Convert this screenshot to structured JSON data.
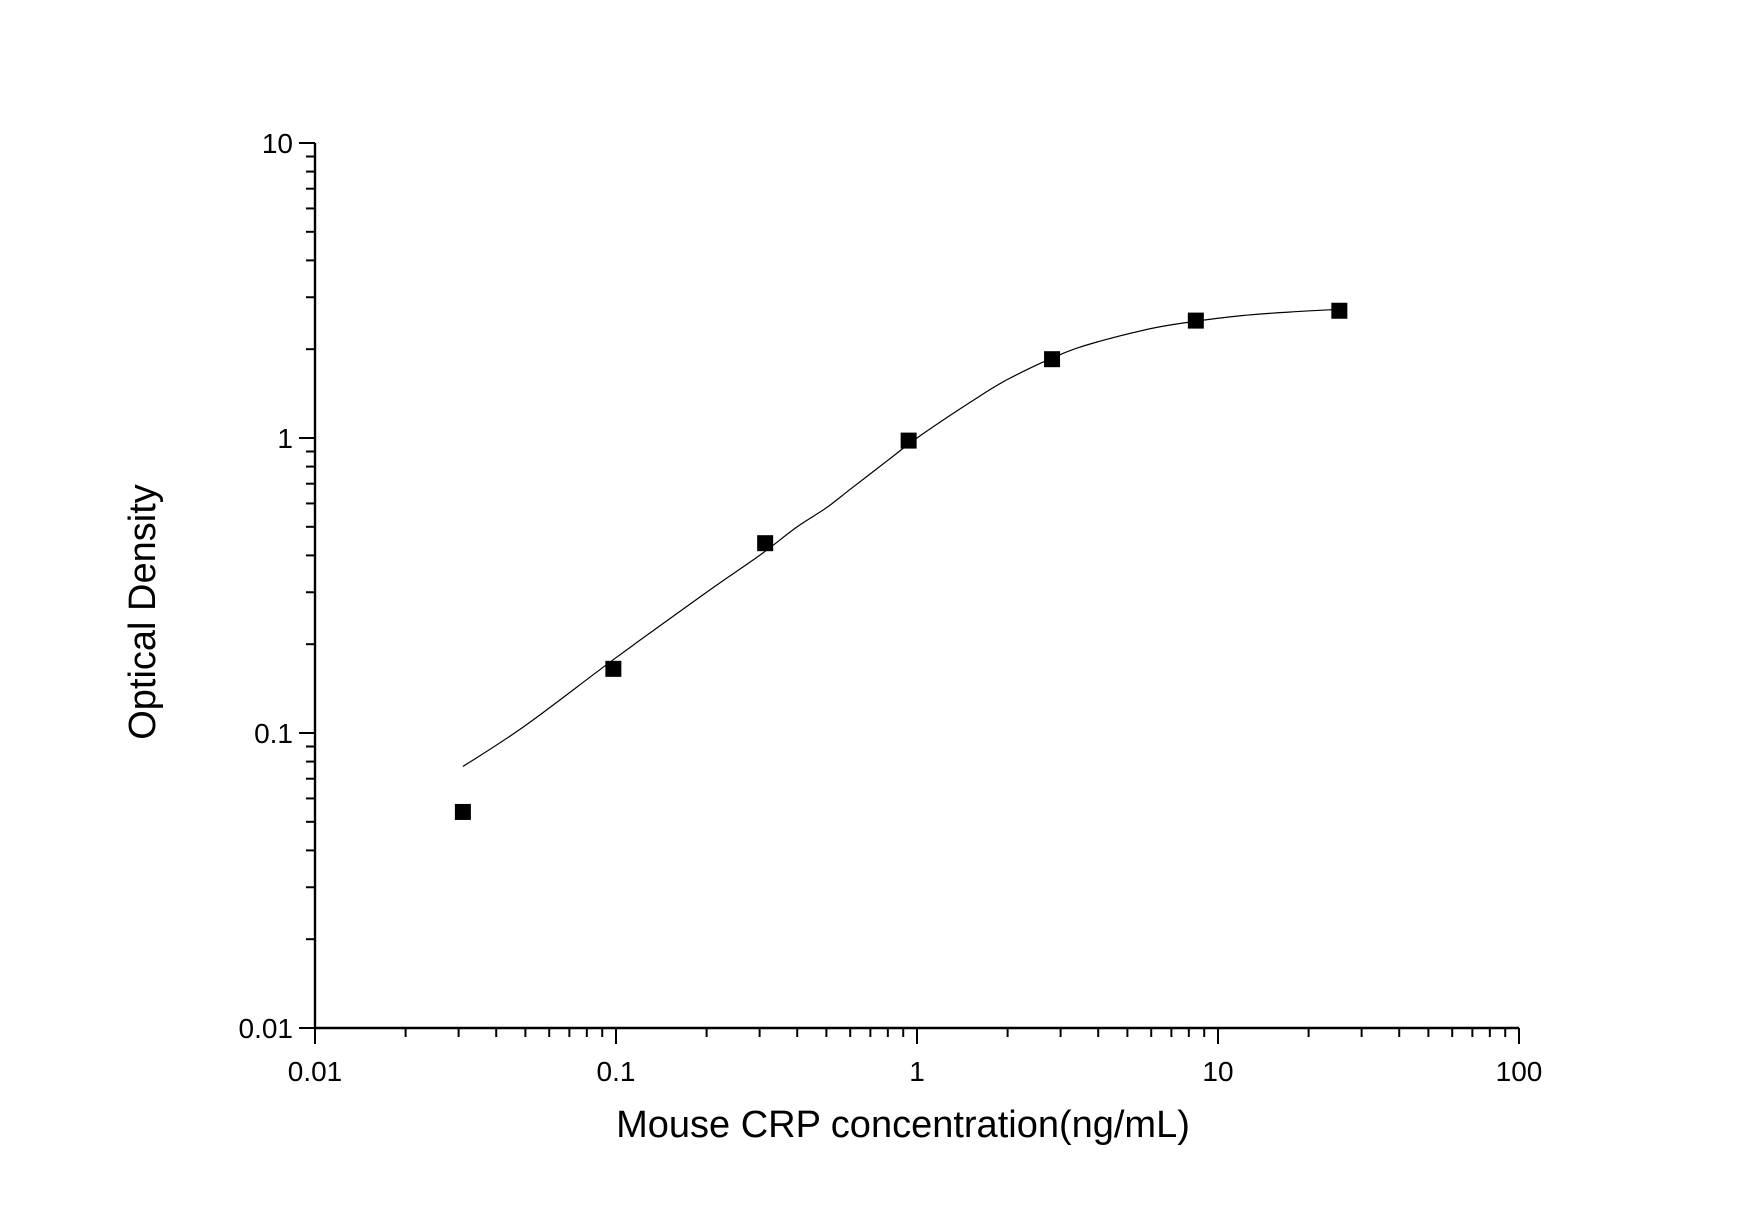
{
  "chart_data": {
    "type": "scatter",
    "xlabel": "Mouse CRP concentration(ng/mL)",
    "ylabel": "Optical Density",
    "xscale": "log",
    "yscale": "log",
    "xlim": [
      0.01,
      100
    ],
    "ylim": [
      0.01,
      10
    ],
    "x_ticks": [
      {
        "value": 0.01,
        "label": "0.01"
      },
      {
        "value": 0.1,
        "label": "0.1"
      },
      {
        "value": 1,
        "label": "1"
      },
      {
        "value": 10,
        "label": "10"
      },
      {
        "value": 100,
        "label": "100"
      }
    ],
    "y_ticks": [
      {
        "value": 0.01,
        "label": "0.01"
      },
      {
        "value": 0.1,
        "label": "0.1"
      },
      {
        "value": 1,
        "label": "1"
      },
      {
        "value": 10,
        "label": "10"
      }
    ],
    "grid": false,
    "series": [
      {
        "type": "scatter",
        "marker": "square",
        "x": [
          0.031,
          0.098,
          0.313,
          0.938,
          2.81,
          8.44,
          25.3
        ],
        "y": [
          0.054,
          0.165,
          0.44,
          0.98,
          1.85,
          2.5,
          2.7
        ]
      },
      {
        "type": "line",
        "x": [
          0.031,
          0.05,
          0.1,
          0.2,
          0.3,
          0.4,
          0.5,
          0.6,
          0.8,
          1.0,
          1.5,
          2.0,
          3.0,
          4.0,
          6.0,
          8.0,
          12.0,
          18.0,
          25.3
        ],
        "y": [
          0.077,
          0.106,
          0.18,
          0.3,
          0.4,
          0.5,
          0.58,
          0.67,
          0.84,
          1.0,
          1.32,
          1.58,
          1.92,
          2.12,
          2.35,
          2.47,
          2.6,
          2.68,
          2.73
        ]
      }
    ],
    "colors": {
      "marks": "#000000",
      "background": "#ffffff"
    }
  }
}
